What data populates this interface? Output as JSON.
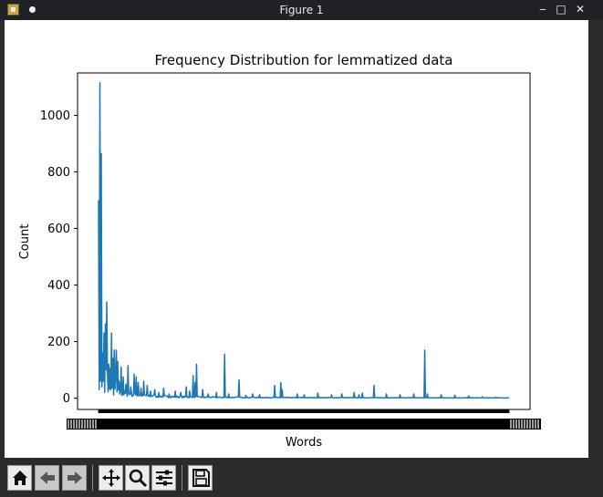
{
  "window": {
    "title": "Figure 1"
  },
  "chart_data": {
    "type": "line",
    "title": "Frequency Distribution for lemmatized data",
    "xlabel": "Words",
    "ylabel": "Count",
    "ylim": [
      -40,
      1150
    ],
    "yticks": [
      0,
      200,
      400,
      600,
      800,
      1000
    ],
    "x_count": 600,
    "grid": false,
    "color": "#1f77b4",
    "peaks": [
      {
        "x": 0,
        "y": 700
      },
      {
        "x": 1,
        "y": 30
      },
      {
        "x": 2,
        "y": 1115
      },
      {
        "x": 3,
        "y": 60
      },
      {
        "x": 4,
        "y": 865
      },
      {
        "x": 5,
        "y": 40
      },
      {
        "x": 6,
        "y": 160
      },
      {
        "x": 7,
        "y": 60
      },
      {
        "x": 8,
        "y": 230
      },
      {
        "x": 9,
        "y": 20
      },
      {
        "x": 10,
        "y": 262
      },
      {
        "x": 11,
        "y": 100
      },
      {
        "x": 12,
        "y": 340
      },
      {
        "x": 13,
        "y": 90
      },
      {
        "x": 15,
        "y": 120
      },
      {
        "x": 17,
        "y": 105
      },
      {
        "x": 19,
        "y": 230
      },
      {
        "x": 21,
        "y": 140
      },
      {
        "x": 23,
        "y": 170
      },
      {
        "x": 25,
        "y": 80
      },
      {
        "x": 26,
        "y": 170
      },
      {
        "x": 28,
        "y": 130
      },
      {
        "x": 30,
        "y": 60
      },
      {
        "x": 33,
        "y": 110
      },
      {
        "x": 36,
        "y": 75
      },
      {
        "x": 40,
        "y": 50
      },
      {
        "x": 43,
        "y": 115
      },
      {
        "x": 47,
        "y": 40
      },
      {
        "x": 52,
        "y": 85
      },
      {
        "x": 55,
        "y": 75
      },
      {
        "x": 58,
        "y": 55
      },
      {
        "x": 62,
        "y": 35
      },
      {
        "x": 66,
        "y": 60
      },
      {
        "x": 71,
        "y": 45
      },
      {
        "x": 76,
        "y": 25
      },
      {
        "x": 82,
        "y": 30
      },
      {
        "x": 88,
        "y": 20
      },
      {
        "x": 95,
        "y": 35
      },
      {
        "x": 103,
        "y": 15
      },
      {
        "x": 112,
        "y": 25
      },
      {
        "x": 120,
        "y": 20
      },
      {
        "x": 128,
        "y": 40
      },
      {
        "x": 133,
        "y": 25
      },
      {
        "x": 138,
        "y": 80
      },
      {
        "x": 141,
        "y": 55
      },
      {
        "x": 143,
        "y": 120
      },
      {
        "x": 152,
        "y": 30
      },
      {
        "x": 160,
        "y": 15
      },
      {
        "x": 172,
        "y": 20
      },
      {
        "x": 184,
        "y": 155
      },
      {
        "x": 190,
        "y": 15
      },
      {
        "x": 205,
        "y": 65
      },
      {
        "x": 215,
        "y": 10
      },
      {
        "x": 225,
        "y": 15
      },
      {
        "x": 235,
        "y": 12
      },
      {
        "x": 257,
        "y": 45
      },
      {
        "x": 266,
        "y": 55
      },
      {
        "x": 268,
        "y": 30
      },
      {
        "x": 290,
        "y": 15
      },
      {
        "x": 300,
        "y": 12
      },
      {
        "x": 320,
        "y": 18
      },
      {
        "x": 340,
        "y": 12
      },
      {
        "x": 355,
        "y": 15
      },
      {
        "x": 373,
        "y": 20
      },
      {
        "x": 380,
        "y": 12
      },
      {
        "x": 385,
        "y": 18
      },
      {
        "x": 402,
        "y": 45
      },
      {
        "x": 420,
        "y": 15
      },
      {
        "x": 440,
        "y": 12
      },
      {
        "x": 460,
        "y": 15
      },
      {
        "x": 476,
        "y": 170
      },
      {
        "x": 480,
        "y": 15
      },
      {
        "x": 500,
        "y": 12
      },
      {
        "x": 520,
        "y": 10
      },
      {
        "x": 540,
        "y": 8
      },
      {
        "x": 560,
        "y": 5
      },
      {
        "x": 580,
        "y": 3
      },
      {
        "x": 599,
        "y": 2
      }
    ]
  },
  "toolbar": {
    "icons": [
      "home-icon",
      "back-icon",
      "forward-icon",
      "pan-icon",
      "zoom-icon",
      "configure-subplots-icon",
      "save-icon"
    ]
  }
}
